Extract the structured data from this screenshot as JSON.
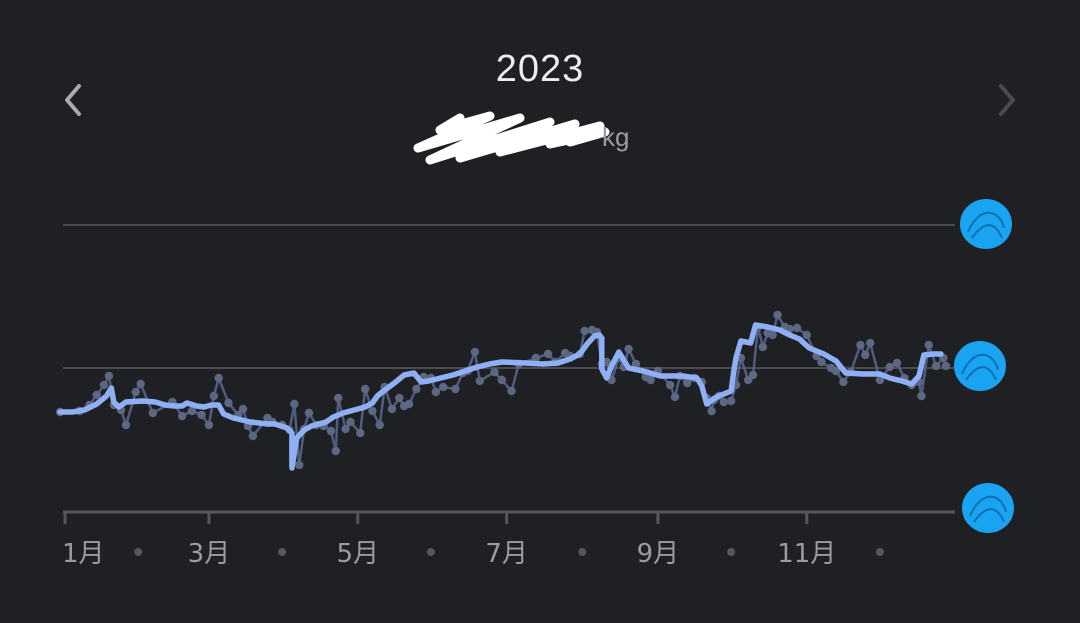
{
  "header": {
    "year": "2023",
    "unit": "kg"
  },
  "colors": {
    "background": "#1f2024",
    "line": "#8fb0f5",
    "raw_line": "#5b6990",
    "raw_point": "#5c6782",
    "grid": "#4a4b50",
    "redaction": "#1aa3f0"
  },
  "icons": {
    "prev": "chevron-left-icon",
    "next": "chevron-right-icon"
  },
  "chart_data": {
    "type": "line",
    "x_range_days": [
      0,
      365
    ],
    "x_ticks": [
      {
        "day": 0,
        "label": "1月"
      },
      {
        "day": 59,
        "label": "3月"
      },
      {
        "day": 120,
        "label": "5月"
      },
      {
        "day": 181,
        "label": "7月"
      },
      {
        "day": 243,
        "label": "9月"
      },
      {
        "day": 304,
        "label": "11月"
      }
    ],
    "minor_dots_days": [
      30,
      89,
      150,
      212,
      273,
      334
    ],
    "gridlines": 3,
    "y_labels_redacted": true,
    "series": [
      {
        "role": "trend",
        "values": [
          [
            -2,
            412
          ],
          [
            3,
            412
          ],
          [
            8,
            410
          ],
          [
            13,
            404
          ],
          [
            17,
            396
          ],
          [
            19,
            388
          ],
          [
            20,
            402
          ],
          [
            22,
            407
          ],
          [
            25,
            402
          ],
          [
            32,
            401
          ],
          [
            37,
            402
          ],
          [
            41,
            405
          ],
          [
            45,
            406
          ],
          [
            48,
            406
          ],
          [
            50,
            403
          ],
          [
            54,
            406
          ],
          [
            57,
            407
          ],
          [
            60,
            405
          ],
          [
            63,
            405
          ],
          [
            65,
            414
          ],
          [
            69,
            418
          ],
          [
            76,
            422
          ],
          [
            83,
            424
          ],
          [
            86,
            424
          ],
          [
            91,
            428
          ],
          [
            93,
            433
          ],
          [
            93,
            468
          ],
          [
            95,
            438
          ],
          [
            98,
            430
          ],
          [
            101,
            426
          ],
          [
            104,
            424
          ],
          [
            107,
            422
          ],
          [
            110,
            417
          ],
          [
            114,
            413
          ],
          [
            117,
            411
          ],
          [
            120,
            409
          ],
          [
            123,
            407
          ],
          [
            126,
            403
          ],
          [
            128,
            396
          ],
          [
            130,
            392
          ],
          [
            135,
            383
          ],
          [
            139,
            375
          ],
          [
            143,
            373
          ],
          [
            146,
            382
          ],
          [
            149,
            381
          ],
          [
            154,
            378
          ],
          [
            159,
            375
          ],
          [
            164,
            371
          ],
          [
            169,
            367
          ],
          [
            174,
            364
          ],
          [
            179,
            362
          ],
          [
            189,
            363
          ],
          [
            196,
            364
          ],
          [
            202,
            363
          ],
          [
            207,
            359
          ],
          [
            211,
            354
          ],
          [
            214,
            344
          ],
          [
            217,
            336
          ],
          [
            219,
            335
          ],
          [
            220,
            338
          ],
          [
            220,
            369
          ],
          [
            222,
            378
          ],
          [
            224,
            366
          ],
          [
            227,
            352
          ],
          [
            231,
            368
          ],
          [
            237,
            371
          ],
          [
            244,
            376
          ],
          [
            253,
            376
          ],
          [
            259,
            378
          ],
          [
            261,
            386
          ],
          [
            263,
            404
          ],
          [
            267,
            397
          ],
          [
            270,
            394
          ],
          [
            273,
            391
          ],
          [
            274,
            373
          ],
          [
            275,
            358
          ],
          [
            277,
            341
          ],
          [
            281,
            343
          ],
          [
            283,
            325
          ],
          [
            288,
            327
          ],
          [
            293,
            330
          ],
          [
            297,
            335
          ],
          [
            301,
            339
          ],
          [
            305,
            348
          ],
          [
            311,
            354
          ],
          [
            316,
            361
          ],
          [
            320,
            373
          ],
          [
            327,
            374
          ],
          [
            334,
            374
          ],
          [
            338,
            378
          ],
          [
            343,
            381
          ],
          [
            347,
            384
          ],
          [
            350,
            376
          ],
          [
            352,
            355
          ],
          [
            356,
            354
          ],
          [
            359,
            354
          ]
        ]
      },
      {
        "role": "raw",
        "values": [
          [
            -2,
            412
          ],
          [
            6,
            411
          ],
          [
            10,
            405
          ],
          [
            13,
            395
          ],
          [
            16,
            385
          ],
          [
            18,
            376
          ],
          [
            20,
            405
          ],
          [
            23,
            410
          ],
          [
            25,
            425
          ],
          [
            29,
            392
          ],
          [
            31,
            384
          ],
          [
            36,
            413
          ],
          [
            44,
            402
          ],
          [
            48,
            416
          ],
          [
            52,
            411
          ],
          [
            56,
            415
          ],
          [
            59,
            425
          ],
          [
            61,
            396
          ],
          [
            63,
            378
          ],
          [
            67,
            403
          ],
          [
            71,
            415
          ],
          [
            73,
            409
          ],
          [
            75,
            426
          ],
          [
            77,
            436
          ],
          [
            83,
            418
          ],
          [
            85,
            422
          ],
          [
            89,
            425
          ],
          [
            92,
            430
          ],
          [
            94,
            404
          ],
          [
            96,
            465
          ],
          [
            98,
            429
          ],
          [
            100,
            413
          ],
          [
            103,
            425
          ],
          [
            106,
            426
          ],
          [
            109,
            431
          ],
          [
            111,
            451
          ],
          [
            112,
            398
          ],
          [
            115,
            429
          ],
          [
            117,
            422
          ],
          [
            121,
            433
          ],
          [
            123,
            389
          ],
          [
            126,
            411
          ],
          [
            129,
            425
          ],
          [
            131,
            387
          ],
          [
            134,
            409
          ],
          [
            137,
            398
          ],
          [
            139,
            406
          ],
          [
            141,
            404
          ],
          [
            144,
            389
          ],
          [
            147,
            377
          ],
          [
            150,
            378
          ],
          [
            152,
            392
          ],
          [
            155,
            387
          ],
          [
            160,
            389
          ],
          [
            163,
            373
          ],
          [
            165,
            371
          ],
          [
            168,
            352
          ],
          [
            170,
            381
          ],
          [
            176,
            372
          ],
          [
            179,
            380
          ],
          [
            183,
            391
          ],
          [
            186,
            364
          ],
          [
            193,
            358
          ],
          [
            198,
            354
          ],
          [
            201,
            362
          ],
          [
            205,
            353
          ],
          [
            207,
            356
          ],
          [
            211,
            354
          ],
          [
            213,
            331
          ],
          [
            216,
            330
          ],
          [
            218,
            332
          ],
          [
            220,
            364
          ],
          [
            222,
            362
          ],
          [
            224,
            380
          ],
          [
            227,
            358
          ],
          [
            229,
            367
          ],
          [
            231,
            349
          ],
          [
            234,
            364
          ],
          [
            238,
            377
          ],
          [
            240,
            380
          ],
          [
            243,
            371
          ],
          [
            248,
            385
          ],
          [
            250,
            397
          ],
          [
            252,
            376
          ],
          [
            255,
            383
          ],
          [
            258,
            378
          ],
          [
            261,
            382
          ],
          [
            263,
            398
          ],
          [
            265,
            411
          ],
          [
            266,
            400
          ],
          [
            268,
            396
          ],
          [
            270,
            402
          ],
          [
            273,
            401
          ],
          [
            275,
            385
          ],
          [
            277,
            358
          ],
          [
            280,
            380
          ],
          [
            282,
            375
          ],
          [
            284,
            327
          ],
          [
            286,
            347
          ],
          [
            288,
            333
          ],
          [
            290,
            335
          ],
          [
            292,
            315
          ],
          [
            295,
            327
          ],
          [
            297,
            329
          ],
          [
            300,
            328
          ],
          [
            304,
            335
          ],
          [
            308,
            356
          ],
          [
            310,
            362
          ],
          [
            314,
            368
          ],
          [
            316,
            371
          ],
          [
            319,
            382
          ],
          [
            322,
            372
          ],
          [
            326,
            345
          ],
          [
            328,
            355
          ],
          [
            330,
            343
          ],
          [
            334,
            380
          ],
          [
            338,
            367
          ],
          [
            341,
            363
          ],
          [
            344,
            378
          ],
          [
            347,
            385
          ],
          [
            350,
            382
          ],
          [
            351,
            396
          ],
          [
            354,
            345
          ],
          [
            357,
            366
          ],
          [
            360,
            358
          ],
          [
            361,
            366
          ]
        ]
      }
    ]
  }
}
